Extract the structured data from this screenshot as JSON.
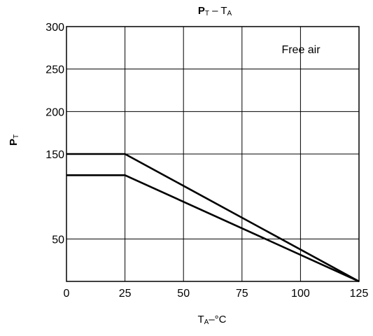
{
  "chart_data": {
    "type": "line",
    "title": {
      "main": "P",
      "main_sub": "T",
      "dash": " – ",
      "second": "T",
      "second_sub": "A"
    },
    "xlabel": {
      "main": "T",
      "sub": "A",
      "unit": "–°C"
    },
    "ylabel": {
      "main": "P",
      "sub": "T"
    },
    "annotation": "Free air",
    "xlim": [
      0,
      125
    ],
    "ylim": [
      0,
      300
    ],
    "x_ticks": [
      0,
      25,
      50,
      75,
      100,
      125
    ],
    "y_ticks": [
      50,
      150,
      200,
      250,
      300
    ],
    "grid": true,
    "series": [
      {
        "x": [
          0,
          25,
          125
        ],
        "y": [
          125,
          125,
          0
        ]
      },
      {
        "x": [
          0,
          25,
          125
        ],
        "y": [
          150,
          150,
          0
        ]
      }
    ],
    "colors": {
      "line": "#000000",
      "grid": "#000000",
      "background": "#ffffff"
    }
  }
}
